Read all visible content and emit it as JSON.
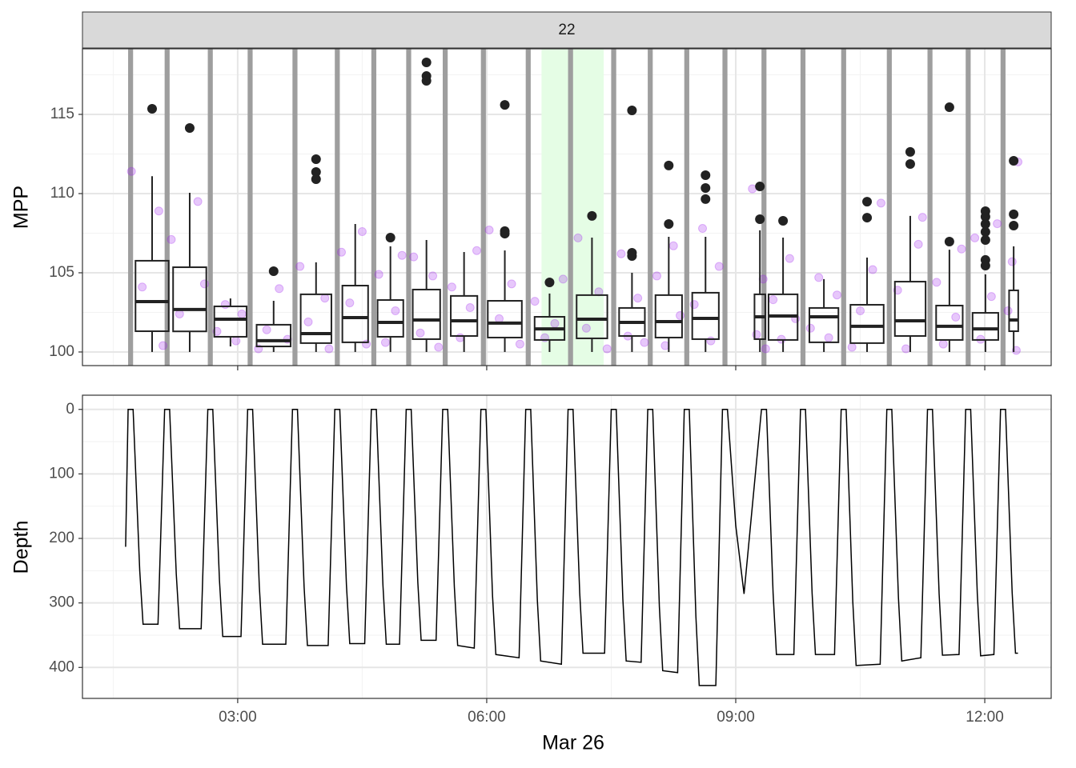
{
  "chart_data": [
    {
      "type": "box",
      "strip": "22",
      "ylabel": "MPP",
      "xlim": [
        1.13,
        12.8
      ],
      "xticks": [
        3,
        6,
        9,
        12
      ],
      "xminor": [
        1.5,
        4.5,
        7.5,
        10.5
      ],
      "ylim": [
        99.14,
        119.14
      ],
      "yticks": [
        100,
        105,
        110,
        115
      ],
      "yminor": [
        102.5,
        107.5,
        112.5,
        117.5
      ],
      "grid": true,
      "highlight": [
        6.66,
        7.41
      ],
      "highlight_color": "#e5fde5",
      "interval_color": "#9e9e9e",
      "surface_intervals": [
        [
          1.68,
          1.74
        ],
        [
          2.12,
          2.18
        ],
        [
          2.64,
          2.7
        ],
        [
          3.12,
          3.18
        ],
        [
          3.66,
          3.72
        ],
        [
          4.17,
          4.23
        ],
        [
          4.61,
          4.67
        ],
        [
          5.03,
          5.09
        ],
        [
          5.47,
          5.53
        ],
        [
          5.93,
          5.99
        ],
        [
          6.47,
          6.53
        ],
        [
          6.98,
          7.04
        ],
        [
          7.5,
          7.56
        ],
        [
          7.94,
          8.0
        ],
        [
          8.38,
          8.44
        ],
        [
          8.84,
          8.9
        ],
        [
          9.31,
          9.37
        ],
        [
          9.78,
          9.84
        ],
        [
          10.27,
          10.33
        ],
        [
          10.82,
          10.88
        ],
        [
          11.31,
          11.37
        ],
        [
          11.77,
          11.83
        ],
        [
          12.19,
          12.25
        ]
      ],
      "point_color": "#a020f0",
      "points": {
        "x": [
          1.72,
          1.85,
          2.05,
          2.1,
          2.2,
          2.3,
          2.52,
          2.6,
          2.75,
          2.85,
          2.98,
          3.05,
          3.25,
          3.35,
          3.5,
          3.6,
          3.75,
          3.85,
          4.05,
          4.1,
          4.25,
          4.35,
          4.5,
          4.55,
          4.7,
          4.78,
          4.9,
          4.98,
          5.12,
          5.2,
          5.35,
          5.42,
          5.58,
          5.68,
          5.8,
          5.88,
          6.03,
          6.15,
          6.3,
          6.4,
          6.58,
          6.7,
          6.82,
          6.92,
          7.1,
          7.2,
          7.35,
          7.45,
          7.62,
          7.7,
          7.82,
          7.9,
          8.05,
          8.15,
          8.25,
          8.33,
          8.5,
          8.6,
          8.7,
          8.8,
          9.2,
          9.25,
          9.33,
          9.36,
          9.45,
          9.55,
          9.65,
          9.72,
          9.9,
          10.0,
          10.12,
          10.22,
          10.4,
          10.5,
          10.65,
          10.75,
          10.95,
          11.05,
          11.2,
          11.25,
          11.42,
          11.5,
          11.65,
          11.72,
          11.88,
          11.95,
          12.08,
          12.15,
          12.28,
          12.33,
          12.38,
          12.4
        ],
        "y": [
          111.4,
          104.1,
          108.9,
          100.4,
          107.1,
          102.4,
          109.5,
          104.3,
          101.3,
          103.0,
          100.7,
          102.4,
          100.2,
          101.4,
          104.0,
          100.8,
          105.4,
          101.9,
          103.4,
          100.2,
          106.3,
          103.1,
          107.6,
          100.5,
          104.9,
          100.6,
          102.6,
          106.1,
          106.0,
          101.2,
          104.8,
          100.3,
          104.1,
          100.9,
          102.8,
          106.4,
          107.7,
          102.1,
          104.3,
          100.5,
          103.2,
          100.9,
          101.8,
          104.6,
          107.2,
          101.5,
          103.8,
          100.2,
          106.2,
          101.0,
          103.4,
          100.6,
          104.8,
          100.4,
          106.7,
          102.3,
          103.0,
          107.8,
          100.7,
          105.4,
          110.3,
          101.1,
          104.6,
          100.2,
          103.3,
          100.8,
          105.9,
          102.1,
          101.5,
          104.7,
          100.9,
          103.6,
          100.3,
          102.6,
          105.2,
          109.4,
          103.9,
          100.2,
          106.8,
          108.5,
          104.4,
          100.5,
          102.2,
          106.5,
          107.2,
          100.8,
          103.5,
          108.1,
          102.6,
          105.7,
          100.1,
          112.0
        ]
      },
      "boxes": [
        {
          "x": 1.969,
          "width": 0.4,
          "lower": 100,
          "q1": 101.31,
          "median": 103.18,
          "q3": 105.76,
          "upper": 111.1,
          "outliers": [
            115.35
          ]
        },
        {
          "x": 2.422,
          "width": 0.4,
          "lower": 100,
          "q1": 101.3,
          "median": 102.68,
          "q3": 105.35,
          "upper": 110.05,
          "outliers": [
            114.14
          ]
        },
        {
          "x": 2.913,
          "width": 0.39,
          "lower": 100.35,
          "q1": 100.96,
          "median": 102.07,
          "q3": 102.88,
          "upper": 103.38,
          "outliers": []
        },
        {
          "x": 3.433,
          "width": 0.41,
          "lower": 100,
          "q1": 100.35,
          "median": 100.71,
          "q3": 101.72,
          "upper": 103.23,
          "outliers": [
            105.1
          ]
        },
        {
          "x": 3.944,
          "width": 0.37,
          "lower": 100,
          "q1": 100.56,
          "median": 101.16,
          "q3": 103.64,
          "upper": 105.66,
          "outliers": [
            112.17,
            111.36,
            110.91
          ]
        },
        {
          "x": 4.416,
          "width": 0.31,
          "lower": 100,
          "q1": 100.61,
          "median": 102.17,
          "q3": 104.19,
          "upper": 108.08,
          "outliers": []
        },
        {
          "x": 4.84,
          "width": 0.31,
          "lower": 100,
          "q1": 100.96,
          "median": 101.87,
          "q3": 103.28,
          "upper": 106.67,
          "outliers": [
            107.22
          ]
        },
        {
          "x": 5.274,
          "width": 0.33,
          "lower": 100,
          "q1": 100.81,
          "median": 102.02,
          "q3": 103.94,
          "upper": 107.07,
          "outliers": [
            118.28,
            117.42,
            117.12
          ]
        },
        {
          "x": 5.727,
          "width": 0.32,
          "lower": 100,
          "q1": 101.01,
          "median": 101.97,
          "q3": 103.54,
          "upper": 106.31,
          "outliers": []
        },
        {
          "x": 6.218,
          "width": 0.41,
          "lower": 100,
          "q1": 100.91,
          "median": 101.82,
          "q3": 103.23,
          "upper": 106.41,
          "outliers": [
            115.6,
            107.63,
            107.47
          ]
        },
        {
          "x": 6.757,
          "width": 0.36,
          "lower": 100,
          "q1": 100.76,
          "median": 101.46,
          "q3": 102.22,
          "upper": 103.69,
          "outliers": [
            104.39
          ]
        },
        {
          "x": 7.268,
          "width": 0.37,
          "lower": 100,
          "q1": 100.86,
          "median": 102.07,
          "q3": 103.59,
          "upper": 107.22,
          "outliers": [
            108.59
          ]
        },
        {
          "x": 7.75,
          "width": 0.31,
          "lower": 100,
          "q1": 101.01,
          "median": 101.87,
          "q3": 102.78,
          "upper": 105.0,
          "outliers": [
            115.25,
            106.26,
            106.06
          ]
        },
        {
          "x": 8.193,
          "width": 0.32,
          "lower": 100,
          "q1": 100.91,
          "median": 101.92,
          "q3": 103.59,
          "upper": 107.27,
          "outliers": [
            111.77,
            108.08
          ]
        },
        {
          "x": 8.636,
          "width": 0.32,
          "lower": 100,
          "q1": 100.81,
          "median": 102.12,
          "q3": 103.74,
          "upper": 107.27,
          "outliers": [
            111.16,
            110.35,
            109.65
          ]
        },
        {
          "x": 9.291,
          "width": 0.13,
          "lower": 100,
          "q1": 100.81,
          "median": 102.22,
          "q3": 103.64,
          "upper": 107.68,
          "outliers": [
            110.45,
            108.38
          ]
        },
        {
          "x": 9.57,
          "width": 0.35,
          "lower": 100,
          "q1": 100.76,
          "median": 102.27,
          "q3": 103.64,
          "upper": 107.22,
          "outliers": [
            108.28
          ]
        },
        {
          "x": 10.062,
          "width": 0.35,
          "lower": 100,
          "q1": 100.61,
          "median": 102.22,
          "q3": 102.78,
          "upper": 104.6,
          "outliers": []
        },
        {
          "x": 10.582,
          "width": 0.4,
          "lower": 100,
          "q1": 100.56,
          "median": 101.62,
          "q3": 102.98,
          "upper": 105.96,
          "outliers": [
            109.49,
            108.48
          ]
        },
        {
          "x": 11.102,
          "width": 0.37,
          "lower": 100,
          "q1": 101.01,
          "median": 101.97,
          "q3": 104.44,
          "upper": 108.59,
          "outliers": [
            112.63,
            111.87
          ]
        },
        {
          "x": 11.574,
          "width": 0.32,
          "lower": 100,
          "q1": 100.76,
          "median": 101.62,
          "q3": 102.93,
          "upper": 106.46,
          "outliers": [
            115.45,
            106.97
          ]
        },
        {
          "x": 12.008,
          "width": 0.31,
          "lower": 100,
          "q1": 100.76,
          "median": 101.46,
          "q3": 102.47,
          "upper": 104.9,
          "outliers": [
            108.89,
            108.54,
            108.08,
            107.58,
            107.07,
            105.81,
            105.45
          ]
        },
        {
          "x": 12.348,
          "width": 0.11,
          "lower": 100,
          "q1": 101.31,
          "median": 102.02,
          "q3": 103.89,
          "upper": 106.67,
          "outliers": [
            112.07,
            108.69,
            107.98
          ]
        }
      ]
    },
    {
      "type": "line",
      "ylabel": "Depth",
      "xlabel": "Mar 26",
      "xlim": [
        1.13,
        12.8
      ],
      "xticks": [
        {
          "value": 3,
          "label": "03:00"
        },
        {
          "value": 6,
          "label": "06:00"
        },
        {
          "value": 9,
          "label": "09:00"
        },
        {
          "value": 12,
          "label": "12:00"
        }
      ],
      "xminor": [
        1.5,
        4.5,
        7.5,
        10.5
      ],
      "ylim": [
        -22,
        448
      ],
      "y_reversed": true,
      "yticks": [
        0,
        100,
        200,
        300,
        400
      ],
      "yminor": [
        50,
        150,
        250,
        350
      ],
      "grid": true,
      "color": "#000000",
      "x": [
        1.65,
        1.68,
        1.74,
        1.82,
        1.86,
        2.04,
        2.12,
        2.18,
        2.26,
        2.3,
        2.56,
        2.64,
        2.7,
        2.78,
        2.82,
        3.04,
        3.12,
        3.18,
        3.26,
        3.3,
        3.58,
        3.66,
        3.72,
        3.8,
        3.84,
        4.09,
        4.17,
        4.23,
        4.31,
        4.35,
        4.53,
        4.61,
        4.67,
        4.75,
        4.79,
        4.95,
        5.03,
        5.09,
        5.17,
        5.21,
        5.39,
        5.47,
        5.53,
        5.61,
        5.65,
        5.85,
        5.93,
        5.99,
        6.07,
        6.11,
        6.39,
        6.47,
        6.53,
        6.61,
        6.65,
        6.9,
        6.98,
        7.04,
        7.12,
        7.16,
        7.42,
        7.5,
        7.56,
        7.64,
        7.68,
        7.86,
        7.94,
        8.0,
        8.08,
        8.12,
        8.3,
        8.38,
        8.44,
        8.52,
        8.56,
        8.76,
        8.84,
        8.9,
        9.0,
        9.1,
        9.31,
        9.37,
        9.45,
        9.49,
        9.7,
        9.78,
        9.84,
        9.92,
        9.96,
        10.19,
        10.27,
        10.33,
        10.41,
        10.45,
        10.74,
        10.82,
        10.88,
        10.96,
        11.0,
        11.23,
        11.31,
        11.37,
        11.45,
        11.49,
        11.69,
        11.77,
        11.83,
        11.91,
        11.95,
        12.11,
        12.19,
        12.25,
        12.33,
        12.37,
        12.4
      ],
      "values": [
        213,
        0,
        0,
        250,
        333,
        333,
        0,
        0,
        255,
        340,
        340,
        0,
        0,
        264,
        352,
        352,
        0,
        0,
        273,
        364,
        364,
        0,
        0,
        275,
        366,
        366,
        0,
        0,
        272,
        363,
        363,
        0,
        0,
        273,
        364,
        364,
        0,
        0,
        268,
        358,
        358,
        0,
        0,
        275,
        366,
        370,
        0,
        0,
        289,
        380,
        385,
        0,
        0,
        296,
        390,
        395,
        0,
        0,
        284,
        378,
        378,
        0,
        0,
        294,
        390,
        392,
        0,
        0,
        306,
        405,
        408,
        0,
        0,
        321,
        428,
        428,
        0,
        0,
        180,
        286,
        0,
        0,
        285,
        380,
        380,
        0,
        0,
        285,
        380,
        380,
        0,
        0,
        298,
        397,
        395,
        0,
        0,
        292,
        390,
        385,
        0,
        0,
        286,
        381,
        380,
        0,
        0,
        286,
        382,
        380,
        0,
        0,
        284,
        378,
        378
      ]
    }
  ]
}
